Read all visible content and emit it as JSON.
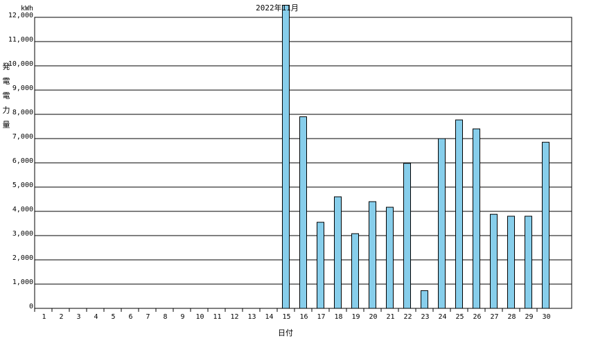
{
  "chart_data": {
    "type": "bar",
    "title": "2022年11月",
    "unit": "kWh",
    "y_label": "発電電力量",
    "x_label": "日付",
    "categories": [
      "1",
      "2",
      "3",
      "4",
      "5",
      "6",
      "7",
      "8",
      "9",
      "10",
      "11",
      "12",
      "13",
      "14",
      "15",
      "16",
      "17",
      "18",
      "19",
      "20",
      "21",
      "22",
      "23",
      "24",
      "25",
      "26",
      "27",
      "28",
      "29",
      "30"
    ],
    "values": [
      0,
      0,
      0,
      0,
      0,
      0,
      0,
      0,
      0,
      0,
      0,
      0,
      0,
      0,
      12500,
      7900,
      3550,
      4600,
      3080,
      4400,
      4170,
      5980,
      730,
      7000,
      7770,
      7400,
      3880,
      3800,
      3800,
      6850
    ],
    "color": "#87ceeb",
    "ylim": [
      0,
      12000
    ],
    "yticks": [
      0,
      {
        "value": 1000,
        "label": "1,000"
      },
      {
        "value": 2000,
        "label": "2,000"
      },
      {
        "value": 3000,
        "label": "3,000"
      },
      {
        "value": 4000,
        "label": "4,000"
      },
      {
        "value": 5000,
        "label": "5,000"
      },
      {
        "value": 6000,
        "label": "6,000"
      },
      {
        "value": 7000,
        "label": "7,000"
      },
      {
        "value": 8000,
        "label": "8,000"
      },
      {
        "value": 9000,
        "label": "9,000"
      },
      {
        "value": 10000,
        "label": "10,000"
      },
      {
        "value": 11000,
        "label": "11,000"
      },
      {
        "value": 12000,
        "label": "12,000"
      }
    ],
    "grid": true
  }
}
